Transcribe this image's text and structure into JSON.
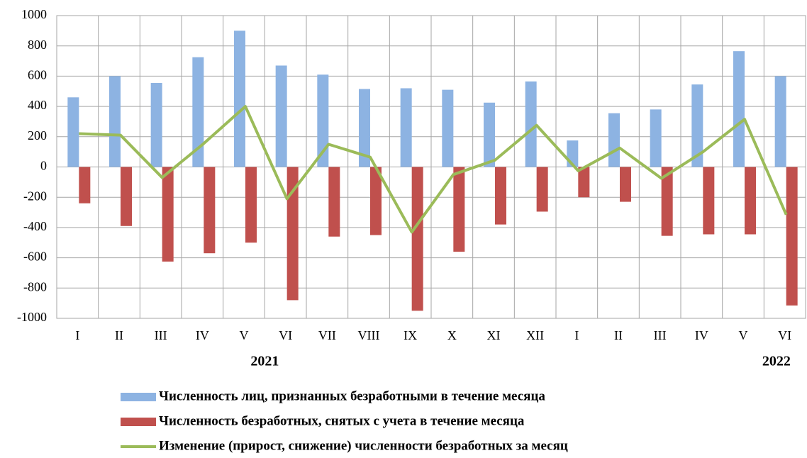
{
  "chart_data": {
    "type": "bar",
    "categories": [
      "I",
      "II",
      "III",
      "IV",
      "V",
      "VI",
      "VII",
      "VIII",
      "IX",
      "X",
      "XI",
      "XII",
      "I",
      "II",
      "III",
      "IV",
      "V",
      "VI"
    ],
    "year_labels": [
      "2021",
      "2022"
    ],
    "series": [
      {
        "name": "Численность лиц, признанных безработными  в течение месяца",
        "type": "bar",
        "color": "#8db3e2",
        "values": [
          460,
          600,
          555,
          725,
          900,
          670,
          610,
          515,
          520,
          510,
          425,
          565,
          175,
          355,
          380,
          545,
          765,
          600
        ]
      },
      {
        "name": "Численность безработных, снятых с учета в течение месяца",
        "type": "bar",
        "color": "#c0504d",
        "values": [
          -240,
          -390,
          -625,
          -570,
          -500,
          -880,
          -460,
          -450,
          -950,
          -560,
          -380,
          -295,
          -200,
          -230,
          -455,
          -445,
          -445,
          -915
        ]
      },
      {
        "name": "Изменение (прирост, снижение) численности безработных за месяц",
        "type": "line",
        "color": "#9bbb59",
        "values": [
          220,
          210,
          -70,
          155,
          400,
          -210,
          150,
          65,
          -430,
          -50,
          45,
          275,
          -25,
          125,
          -75,
          100,
          315,
          -315
        ]
      }
    ],
    "ylim": [
      -1000,
      1000
    ],
    "yticks": [
      -1000,
      -800,
      -600,
      -400,
      -200,
      0,
      200,
      400,
      600,
      800,
      1000
    ],
    "grid": true
  }
}
